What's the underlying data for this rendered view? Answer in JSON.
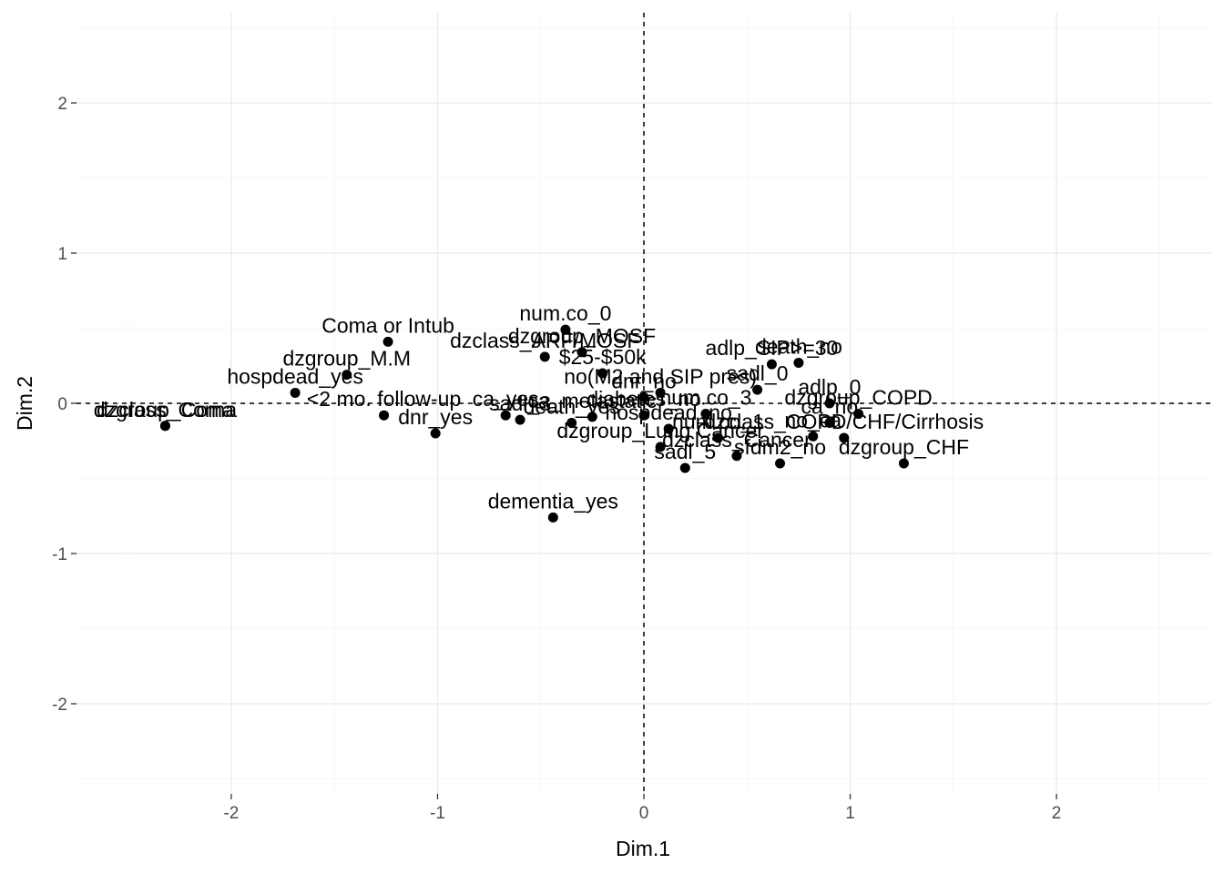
{
  "chart_data": {
    "type": "scatter",
    "title": "",
    "xlabel": "Dim.1",
    "ylabel": "Dim.2",
    "xlim": [
      -2.75,
      2.75
    ],
    "ylim": [
      -2.6,
      2.6
    ],
    "xticks": [
      -2,
      -1,
      0,
      1,
      2
    ],
    "yticks": [
      -2,
      -1,
      0,
      1,
      2
    ],
    "xtick_labels": [
      "-2",
      "-1",
      "0",
      "1",
      "2"
    ],
    "ytick_labels": [
      "-2",
      "-1",
      "0",
      "1",
      "2"
    ],
    "reference_lines": {
      "x": 0,
      "y": 0,
      "style": "dashed"
    },
    "grid": true,
    "legend": "none",
    "points": [
      {
        "label": "dzgroup_Coma",
        "x": -2.32,
        "y": -0.15
      },
      {
        "label": "dzclass_Coma",
        "x": -2.32,
        "y": -0.15
      },
      {
        "label": "Coma or Intub",
        "x": -1.24,
        "y": 0.41
      },
      {
        "label": "dzgroup_M.M",
        "x": -1.44,
        "y": 0.19
      },
      {
        "label": "hospdead_yes",
        "x": -1.69,
        "y": 0.07
      },
      {
        "label": "<2 mo. follow-up",
        "x": -1.26,
        "y": -0.08
      },
      {
        "label": "dnr_yes",
        "x": -1.01,
        "y": -0.2
      },
      {
        "label": "ca_yes",
        "x": -0.67,
        "y": -0.08
      },
      {
        "label": "sadl_3",
        "x": -0.6,
        "y": -0.11
      },
      {
        "label": "death_yes",
        "x": -0.35,
        "y": -0.13
      },
      {
        "label": "num.co_0",
        "x": -0.38,
        "y": 0.49
      },
      {
        "label": "dzgroup_MOSF",
        "x": -0.3,
        "y": 0.34
      },
      {
        "label": "dzclass_ARF/MOSF",
        "x": -0.48,
        "y": 0.31
      },
      {
        "label": "dementia_yes",
        "x": -0.44,
        "y": -0.76
      },
      {
        "label": "$25-$50k",
        "x": -0.2,
        "y": 0.2
      },
      {
        "label": "ca_metastatic",
        "x": -0.25,
        "y": -0.09
      },
      {
        "label": "diabetes_no",
        "x": 0.0,
        "y": -0.08
      },
      {
        "label": "no(M2 and SIP pres)",
        "x": 0.08,
        "y": 0.07
      },
      {
        "label": "death_no",
        "x": 0.75,
        "y": 0.27
      },
      {
        "label": "adlp_SIP>=30",
        "x": 0.62,
        "y": 0.26
      },
      {
        "label": "sadl_0",
        "x": 0.55,
        "y": 0.09
      },
      {
        "label": "adlp_0",
        "x": 0.9,
        "y": 0.0
      },
      {
        "label": "dnr_no",
        "x": 0.0,
        "y": 0.04
      },
      {
        "label": "num.co_3",
        "x": 0.3,
        "y": -0.07
      },
      {
        "label": "dzgroup_COPD",
        "x": 1.04,
        "y": -0.07
      },
      {
        "label": "dzclass_COPD/CHF/Cirrhosis",
        "x": 0.97,
        "y": -0.23
      },
      {
        "label": "dzgroup_CHF",
        "x": 1.26,
        "y": -0.4
      },
      {
        "label": "dzgroup_Lung Cancer",
        "x": 0.08,
        "y": -0.29
      },
      {
        "label": "dzclass_Cancer",
        "x": 0.45,
        "y": -0.35
      },
      {
        "label": "sadl_5",
        "x": 0.2,
        "y": -0.43
      },
      {
        "label": "no_ca",
        "x": 0.82,
        "y": -0.22
      },
      {
        "label": "ca_no",
        "x": 0.9,
        "y": -0.13
      },
      {
        "label": "sfdm2_no",
        "x": 0.66,
        "y": -0.4
      },
      {
        "label": "num.co_1",
        "x": 0.36,
        "y": -0.23
      },
      {
        "label": "hospdead_no",
        "x": 0.12,
        "y": -0.17
      }
    ]
  }
}
